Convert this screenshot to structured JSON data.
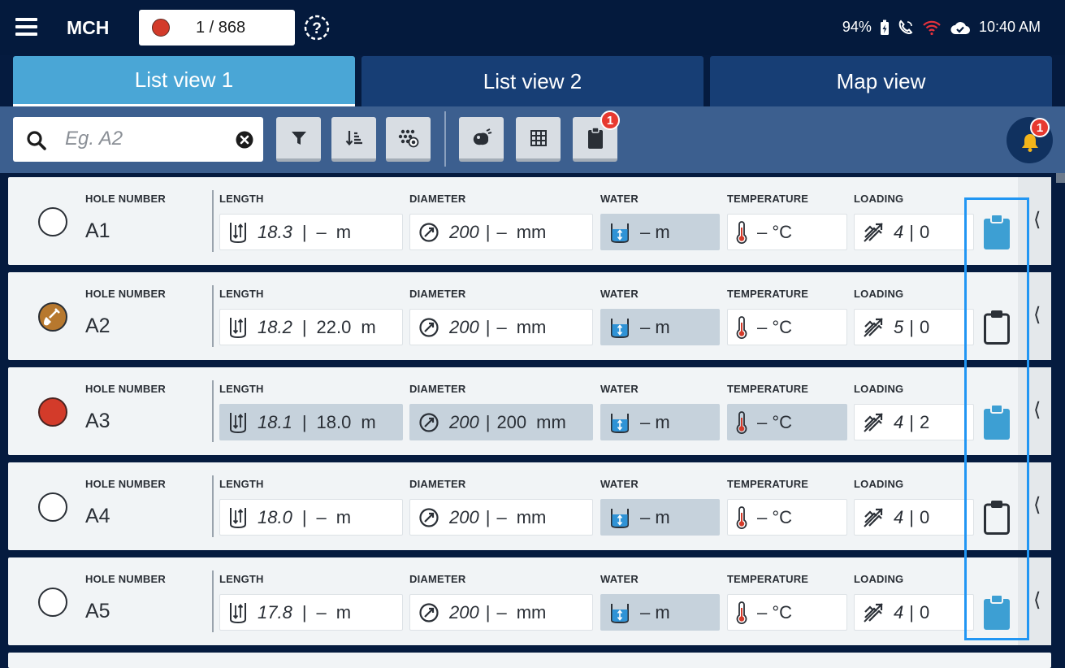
{
  "header": {
    "app_title": "MCH",
    "counter": "1 / 868",
    "battery": "94%",
    "time": "10:40 AM"
  },
  "tabs": [
    {
      "label": "List view 1",
      "active": true
    },
    {
      "label": "List view 2",
      "active": false
    },
    {
      "label": "Map view",
      "active": false
    }
  ],
  "toolbar": {
    "search_placeholder": "Eg. A2",
    "clipboard_badge": "1",
    "notification_badge": "1"
  },
  "columns": {
    "hole": "HOLE NUMBER",
    "length": "LENGTH",
    "diameter": "DIAMETER",
    "water": "WATER",
    "temperature": "TEMPERATURE",
    "loading": "LOADING"
  },
  "colors": {
    "accent": "#4aa6d6",
    "status_red": "#d33b2a",
    "status_brown": "#b7782e",
    "highlight": "#2196f3"
  },
  "rows": [
    {
      "hole": "A1",
      "status": "empty",
      "length_planned": "18.3",
      "length_actual": "–",
      "length_unit": "m",
      "diameter_planned": "200",
      "diameter_actual": "–",
      "diameter_unit": "mm",
      "water": "– m",
      "temperature": "– °C",
      "loading_a": "4",
      "loading_b": "0",
      "clipboard_icon": "clipboard-filled-icon"
    },
    {
      "hole": "A2",
      "status": "shovel",
      "length_planned": "18.2",
      "length_actual": "22.0",
      "length_unit": "m",
      "diameter_planned": "200",
      "diameter_actual": "–",
      "diameter_unit": "mm",
      "water": "– m",
      "temperature": "– °C",
      "loading_a": "5",
      "loading_b": "0",
      "clipboard_icon": "clipboard-outline-icon"
    },
    {
      "hole": "A3",
      "status": "red",
      "length_planned": "18.1",
      "length_actual": "18.0",
      "length_unit": "m",
      "diameter_planned": "200",
      "diameter_actual": "200",
      "diameter_unit": "mm",
      "water": "– m",
      "temperature": "– °C",
      "loading_a": "4",
      "loading_b": "2",
      "clipboard_icon": "clipboard-filled-icon"
    },
    {
      "hole": "A4",
      "status": "empty",
      "length_planned": "18.0",
      "length_actual": "–",
      "length_unit": "m",
      "diameter_planned": "200",
      "diameter_actual": "–",
      "diameter_unit": "mm",
      "water": "– m",
      "temperature": "– °C",
      "loading_a": "4",
      "loading_b": "0",
      "clipboard_icon": "clipboard-outline-icon"
    },
    {
      "hole": "A5",
      "status": "empty",
      "length_planned": "17.8",
      "length_actual": "–",
      "length_unit": "m",
      "diameter_planned": "200",
      "diameter_actual": "–",
      "diameter_unit": "mm",
      "water": "– m",
      "temperature": "– °C",
      "loading_a": "4",
      "loading_b": "0",
      "clipboard_icon": "clipboard-filled-icon"
    }
  ]
}
